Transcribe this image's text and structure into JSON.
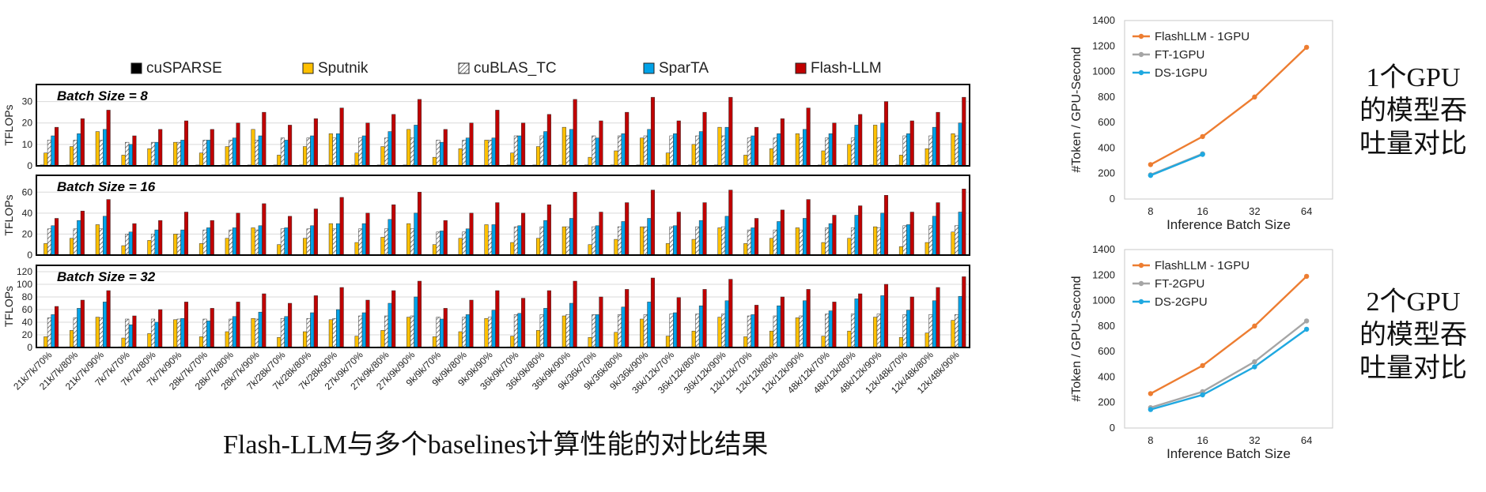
{
  "captions": {
    "main": "Flash-LLM与多个baselines计算性能的对比结果",
    "right_top": [
      "1个GPU",
      "的模型吞",
      "吐量对比"
    ],
    "right_bottom": [
      "2个GPU",
      "的模型吞",
      "吐量对比"
    ]
  },
  "colors": {
    "cuSPARSE": "#000000",
    "Sputnik": "#FFC000",
    "cuBLAS_TC": "#ffffff",
    "SparTA": "#00A2E8",
    "Flash-LLM": "#C00000",
    "FlashLLM_line": "#ED7D31",
    "FT_line": "#A5A5A5",
    "DS_line": "#1FA8E0"
  },
  "chart_data": [
    {
      "type": "bar",
      "legend": [
        "cuSPARSE",
        "Sputnik",
        "cuBLAS_TC",
        "SparTA",
        "Flash-LLM"
      ],
      "categories": [
        "21k/7k/70%",
        "21k/7k/80%",
        "21k/7k/90%",
        "7k/7k/70%",
        "7k/7k/80%",
        "7k/7k/90%",
        "28k/7k/70%",
        "28k/7k/80%",
        "28k/7k/90%",
        "7k/28k/70%",
        "7k/28k/80%",
        "7k/28k/90%",
        "27k/9k/70%",
        "27k/9k/80%",
        "27k/9k/90%",
        "9k/9k/70%",
        "9k/9k/80%",
        "9k/9k/90%",
        "36k/9k/70%",
        "36k/9k/80%",
        "36k/9k/90%",
        "9k/36k/70%",
        "9k/36k/80%",
        "9k/36k/90%",
        "36k/12k/70%",
        "36k/12k/80%",
        "36k/12k/90%",
        "12k/12k/70%",
        "12k/12k/80%",
        "12k/12k/90%",
        "48k/12k/70%",
        "48k/12k/80%",
        "48k/12k/90%",
        "12k/48k/70%",
        "12k/48k/80%",
        "12k/48k/90%"
      ],
      "ylabel": "TFLOPs",
      "panels": [
        {
          "title": "Batch Size = 8",
          "ylim": [
            0,
            35
          ],
          "yticks": [
            0,
            10,
            20,
            30
          ],
          "series": [
            {
              "name": "cuSPARSE",
              "values": [
                0.4,
                0.4,
                0.4,
                0.3,
                0.3,
                0.3,
                0.4,
                0.4,
                0.4,
                0.4,
                0.4,
                0.4,
                0.4,
                0.4,
                0.4,
                0.3,
                0.3,
                0.3,
                0.4,
                0.4,
                0.4,
                0.4,
                0.4,
                0.4,
                0.4,
                0.4,
                0.4,
                0.3,
                0.3,
                0.3,
                0.4,
                0.4,
                0.4,
                0.4,
                0.4,
                0.4
              ]
            },
            {
              "name": "Sputnik",
              "values": [
                6,
                9,
                16,
                5,
                8,
                11,
                6,
                9,
                17,
                5,
                9,
                15,
                6,
                9,
                17,
                4,
                8,
                12,
                6,
                9,
                18,
                4,
                7,
                13,
                6,
                10,
                18,
                5,
                8,
                15,
                7,
                10,
                19,
                5,
                8,
                15
              ]
            },
            {
              "name": "cuBLAS_TC",
              "values": [
                12,
                12,
                12,
                11,
                11,
                11,
                12,
                12,
                12,
                13,
                13,
                13,
                13,
                13,
                13,
                12,
                12,
                12,
                14,
                14,
                14,
                14,
                14,
                14,
                14,
                14,
                14,
                13,
                13,
                13,
                13,
                13,
                13,
                14,
                14,
                14
              ]
            },
            {
              "name": "SparTA",
              "values": [
                14,
                15,
                17,
                10,
                11,
                12,
                12,
                13,
                14,
                12,
                14,
                15,
                14,
                16,
                19,
                11,
                13,
                13,
                14,
                16,
                17,
                13,
                15,
                17,
                15,
                16,
                18,
                14,
                15,
                17,
                15,
                19,
                20,
                15,
                18,
                20
              ]
            },
            {
              "name": "Flash-LLM",
              "values": [
                18,
                22,
                26,
                14,
                17,
                21,
                17,
                20,
                25,
                19,
                22,
                27,
                20,
                24,
                31,
                17,
                20,
                26,
                20,
                24,
                31,
                21,
                25,
                32,
                21,
                25,
                32,
                18,
                22,
                27,
                20,
                24,
                30,
                21,
                25,
                32
              ]
            }
          ]
        },
        {
          "title": "Batch Size = 16",
          "ylim": [
            0,
            70
          ],
          "yticks": [
            0,
            20,
            40,
            60
          ],
          "series": [
            {
              "name": "cuSPARSE",
              "values": [
                0.6,
                0.6,
                0.6,
                0.5,
                0.5,
                0.5,
                0.6,
                0.6,
                0.6,
                0.6,
                0.6,
                0.6,
                0.6,
                0.6,
                0.6,
                0.5,
                0.5,
                0.5,
                0.6,
                0.6,
                0.6,
                0.6,
                0.6,
                0.6,
                0.6,
                0.6,
                0.6,
                0.5,
                0.5,
                0.5,
                0.6,
                0.6,
                0.6,
                0.6,
                0.6,
                0.6
              ]
            },
            {
              "name": "Sputnik",
              "values": [
                11,
                16,
                29,
                9,
                14,
                20,
                11,
                16,
                26,
                10,
                16,
                30,
                12,
                17,
                30,
                10,
                16,
                29,
                12,
                16,
                27,
                10,
                15,
                27,
                11,
                15,
                26,
                11,
                16,
                26,
                12,
                16,
                27,
                8,
                12,
                22
              ]
            },
            {
              "name": "cuBLAS_TC",
              "values": [
                25,
                25,
                25,
                20,
                20,
                20,
                24,
                24,
                24,
                25,
                25,
                25,
                25,
                25,
                25,
                22,
                22,
                22,
                27,
                27,
                27,
                27,
                27,
                27,
                27,
                27,
                27,
                24,
                24,
                24,
                26,
                26,
                26,
                28,
                28,
                28
              ]
            },
            {
              "name": "SparTA",
              "values": [
                28,
                33,
                37,
                22,
                24,
                24,
                26,
                26,
                28,
                26,
                28,
                30,
                30,
                34,
                40,
                23,
                25,
                29,
                28,
                33,
                35,
                28,
                32,
                35,
                28,
                33,
                37,
                26,
                32,
                35,
                30,
                38,
                40,
                29,
                37,
                41
              ]
            },
            {
              "name": "Flash-LLM",
              "values": [
                35,
                42,
                53,
                30,
                33,
                41,
                33,
                40,
                49,
                37,
                44,
                55,
                40,
                48,
                60,
                33,
                40,
                50,
                40,
                48,
                60,
                41,
                50,
                62,
                41,
                50,
                62,
                35,
                43,
                53,
                38,
                47,
                57,
                41,
                50,
                63
              ]
            }
          ]
        },
        {
          "title": "Batch Size = 32",
          "ylim": [
            0,
            120
          ],
          "yticks": [
            0,
            20,
            40,
            60,
            80,
            100,
            120
          ],
          "series": [
            {
              "name": "cuSPARSE",
              "values": [
                1,
                1,
                1,
                1,
                1,
                1,
                1,
                1,
                1,
                1,
                1,
                1,
                1,
                1,
                1,
                1,
                1,
                1,
                1,
                1,
                1,
                1,
                1,
                1,
                1,
                1,
                1,
                1,
                1,
                1,
                1,
                1,
                1,
                1,
                1,
                1
              ]
            },
            {
              "name": "Sputnik",
              "values": [
                17,
                27,
                48,
                15,
                22,
                44,
                17,
                25,
                46,
                16,
                25,
                44,
                18,
                27,
                48,
                17,
                25,
                46,
                18,
                27,
                50,
                16,
                24,
                45,
                18,
                26,
                48,
                17,
                26,
                47,
                18,
                26,
                48,
                16,
                23,
                43
              ]
            },
            {
              "name": "cuBLAS_TC",
              "values": [
                47,
                47,
                47,
                45,
                45,
                45,
                45,
                45,
                45,
                46,
                46,
                46,
                50,
                50,
                50,
                48,
                48,
                48,
                52,
                52,
                52,
                52,
                52,
                52,
                53,
                53,
                53,
                50,
                50,
                50,
                53,
                53,
                53,
                52,
                52,
                52
              ]
            },
            {
              "name": "SparTA",
              "values": [
                52,
                62,
                72,
                36,
                40,
                46,
                42,
                49,
                56,
                49,
                55,
                60,
                55,
                70,
                80,
                45,
                52,
                59,
                54,
                62,
                70,
                52,
                64,
                72,
                55,
                66,
                74,
                52,
                66,
                74,
                58,
                77,
                82,
                59,
                74,
                81
              ]
            },
            {
              "name": "Flash-LLM",
              "values": [
                65,
                75,
                90,
                50,
                60,
                72,
                62,
                72,
                85,
                70,
                82,
                95,
                75,
                90,
                105,
                62,
                75,
                90,
                78,
                90,
                105,
                80,
                92,
                110,
                79,
                92,
                108,
                67,
                80,
                92,
                72,
                85,
                100,
                80,
                95,
                112
              ]
            }
          ]
        }
      ]
    },
    {
      "type": "line",
      "x": [
        "8",
        "16",
        "32",
        "64"
      ],
      "xlabel": "Inference Batch Size",
      "ylabel": "#Token / GPU-Second",
      "ylim": [
        0,
        1400
      ],
      "yticks": [
        0,
        200,
        400,
        600,
        800,
        1000,
        1200,
        1400
      ],
      "legend_position": "top-left",
      "series": [
        {
          "name": "FlashLLM - 1GPU",
          "values": [
            270,
            490,
            800,
            1190
          ]
        },
        {
          "name": "FT-1GPU",
          "values": [
            190,
            355,
            null,
            null
          ]
        },
        {
          "name": "DS-1GPU",
          "values": [
            185,
            350,
            null,
            null
          ]
        }
      ]
    },
    {
      "type": "line",
      "x": [
        "8",
        "16",
        "32",
        "64"
      ],
      "xlabel": "Inference Batch Size",
      "ylabel": "#Token / GPU-Second",
      "ylim": [
        0,
        1400
      ],
      "yticks": [
        0,
        200,
        400,
        600,
        800,
        1000,
        1200,
        1400
      ],
      "legend_position": "top-left",
      "series": [
        {
          "name": "FlashLLM - 1GPU",
          "values": [
            270,
            490,
            800,
            1190
          ]
        },
        {
          "name": "FT-2GPU",
          "values": [
            160,
            285,
            520,
            840
          ]
        },
        {
          "name": "DS-2GPU",
          "values": [
            145,
            260,
            480,
            775
          ]
        }
      ]
    }
  ]
}
